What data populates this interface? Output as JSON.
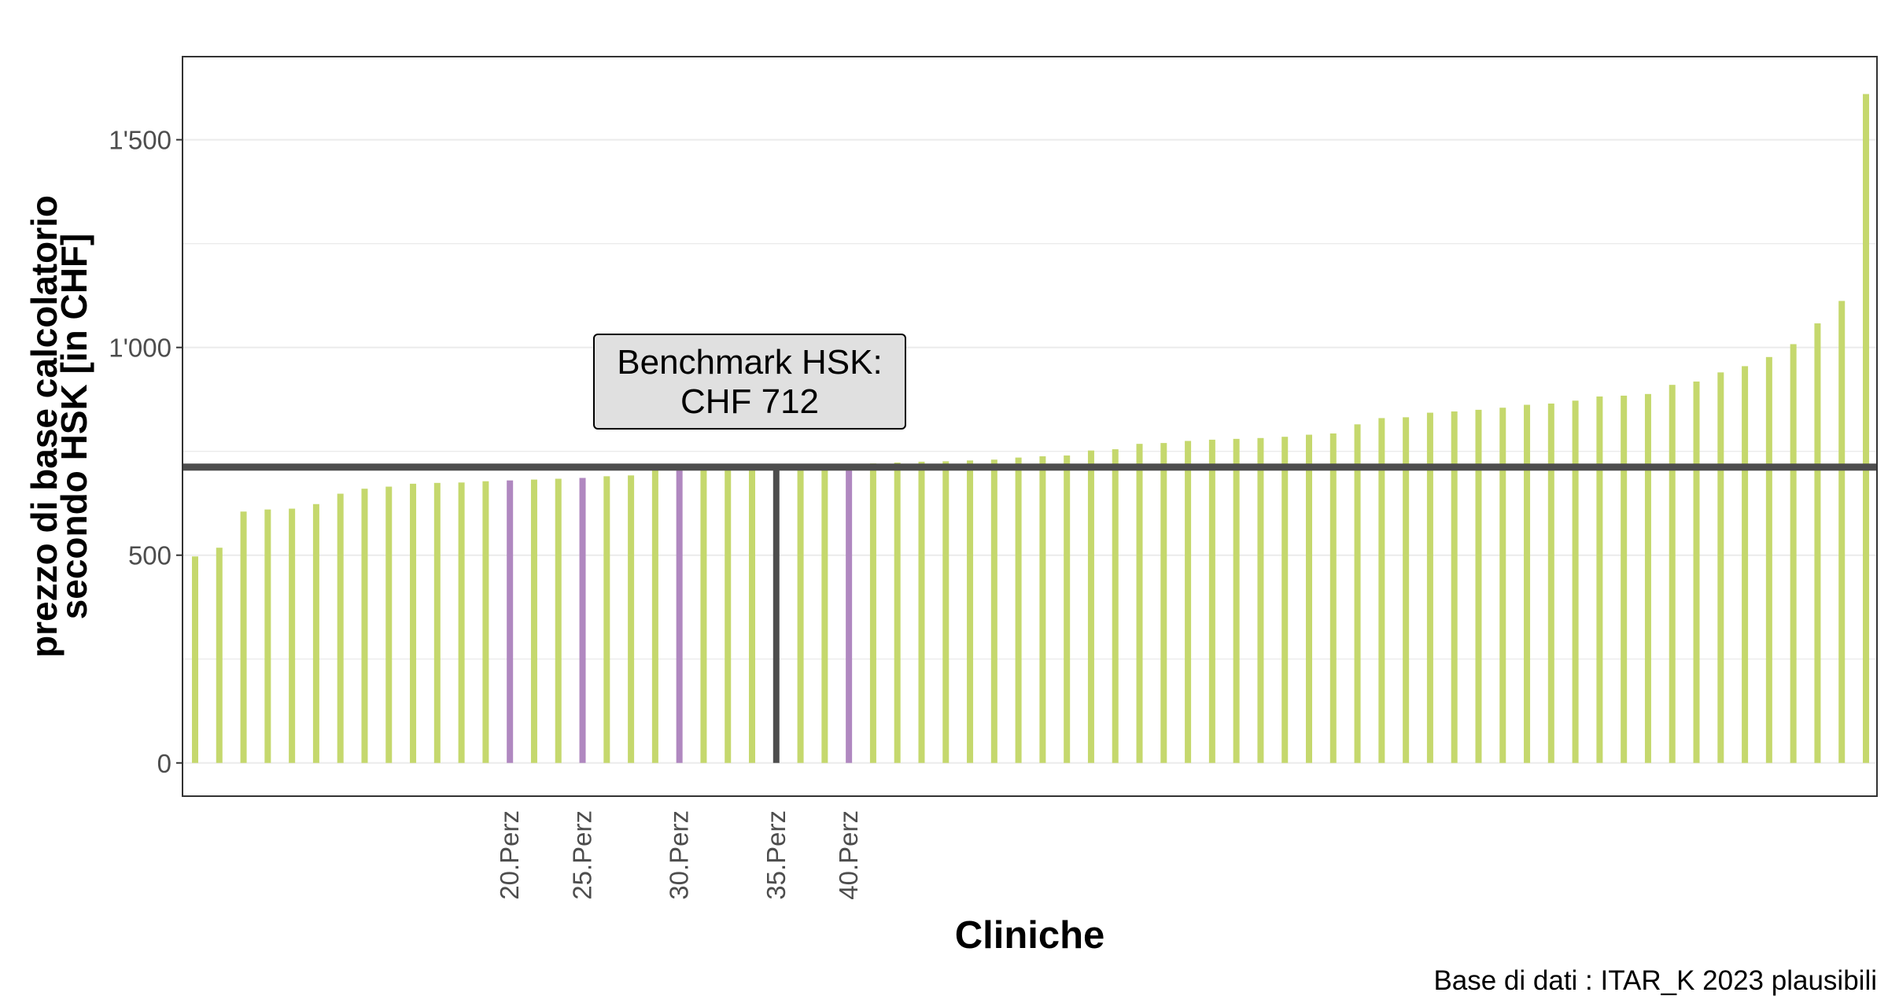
{
  "chart_data": {
    "type": "bar",
    "xlabel": "Cliniche",
    "ylabel_line1": "prezzo di base calcolatorio",
    "ylabel_line2": "secondo HSK [in CHF]",
    "caption": "Base di dati : ITAR_K 2023 plausibili",
    "ylim": [
      -80,
      1700
    ],
    "y_ticks": [
      0,
      500,
      1000,
      1500
    ],
    "y_tick_labels": [
      "0",
      "500",
      "1'000",
      "1'500"
    ],
    "grid": true,
    "benchmark": {
      "value": 712,
      "label_line1": "Benchmark HSK:",
      "label_line2": "CHF 712",
      "color": "#4d4d4d"
    },
    "colors": {
      "default": "#c5d86d",
      "percentile": "#b088c0",
      "benchmark": "#4d4d4d"
    },
    "percentile_labels": [
      {
        "index": 13,
        "label": "20.Perz"
      },
      {
        "index": 16,
        "label": "25.Perz"
      },
      {
        "index": 20,
        "label": "30.Perz"
      },
      {
        "index": 24,
        "label": "35.Perz"
      },
      {
        "index": 27,
        "label": "40.Perz"
      }
    ],
    "highlight": {
      "percentile": [
        13,
        16,
        20,
        27
      ],
      "benchmark": [
        24
      ]
    },
    "values": [
      497,
      518,
      605,
      610,
      612,
      623,
      648,
      660,
      665,
      672,
      674,
      675,
      678,
      680,
      682,
      684,
      686,
      690,
      692,
      705,
      707,
      709,
      710,
      711,
      712,
      713,
      714,
      719,
      721,
      723,
      725,
      726,
      728,
      730,
      735,
      738,
      740,
      752,
      755,
      768,
      770,
      775,
      778,
      780,
      782,
      785,
      790,
      793,
      815,
      830,
      832,
      843,
      846,
      850,
      855,
      862,
      865,
      872,
      882,
      884,
      888,
      910,
      918,
      940,
      955,
      977,
      1008,
      1058,
      1112,
      1610
    ]
  }
}
